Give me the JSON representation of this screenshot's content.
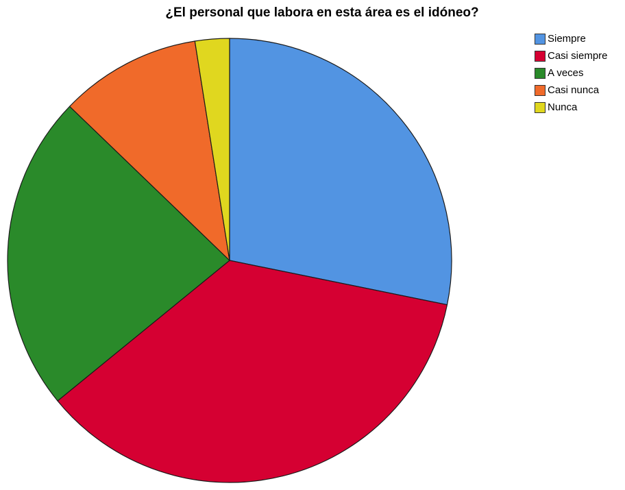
{
  "chart_data": {
    "type": "pie",
    "title": "¿El personal que labora en esta área es el idóneo?",
    "categories": [
      "Siempre",
      "Casi siempre",
      "A veces",
      "Casi nunca",
      "Nunca"
    ],
    "values": [
      28.2,
      35.9,
      23.1,
      10.3,
      2.5
    ],
    "colors": [
      "#5294e2",
      "#d50032",
      "#2a8a2a",
      "#f06a2a",
      "#e0d71f"
    ],
    "start_angle_deg": 0,
    "direction": "clockwise",
    "legend_position": "top-right"
  }
}
